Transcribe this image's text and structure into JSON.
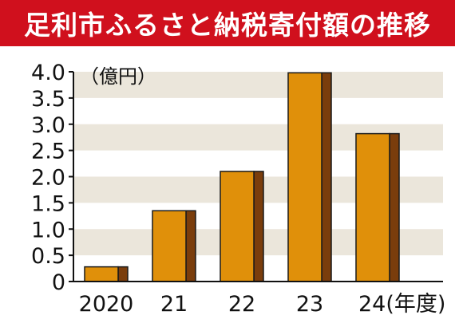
{
  "title": "足利市ふるさと納税寄付額の推移",
  "colors": {
    "title_bg": "#d0101d",
    "band": "#ebe6db",
    "bar_front": "#e0900a",
    "bar_side": "#7a3d0c",
    "outline": "#1a1a1a"
  },
  "chart_data": {
    "type": "bar",
    "title": "足利市ふるさと納税寄付額の推移",
    "unit_label": "（億円）",
    "xlabel_suffix": "(年度)",
    "categories": [
      "2020",
      "21",
      "22",
      "23",
      "24"
    ],
    "values": [
      0.28,
      1.35,
      2.1,
      3.98,
      2.82
    ],
    "ylim": [
      0,
      4.0
    ],
    "yticks": [
      "4.0",
      "3.5",
      "3.0",
      "2.5",
      "2.0",
      "1.5",
      "1.0",
      "0.5",
      "0"
    ],
    "ytick_values": [
      4.0,
      3.5,
      3.0,
      2.5,
      2.0,
      1.5,
      1.0,
      0.5,
      0
    ],
    "grid": "alternating horizontal bands"
  }
}
